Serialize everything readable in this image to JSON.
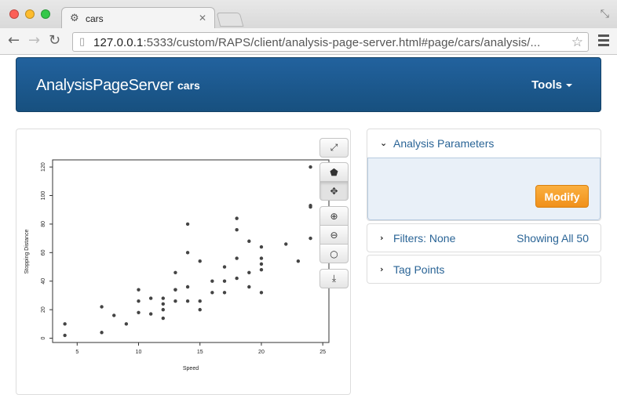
{
  "browser": {
    "tab_title": "cars",
    "tab_favicon": "gear-icon",
    "url_host": "127.0.0.1",
    "url_rest": ":5333/custom/RAPS/client/analysis-page-server.html#page/cars/analysis/..."
  },
  "navbar": {
    "brand": "AnalysisPageServer",
    "subtitle": "cars",
    "tools_label": "Tools"
  },
  "plot_tools": [
    {
      "name": "expand-icon",
      "glyph": "⤢"
    },
    {
      "name": "tag-icon",
      "glyph": "⬟"
    },
    {
      "name": "move-icon",
      "glyph": "✥"
    },
    {
      "name": "zoom-in-icon",
      "glyph": "⊕"
    },
    {
      "name": "zoom-out-icon",
      "glyph": "⊖"
    },
    {
      "name": "circle-icon",
      "glyph": "○"
    },
    {
      "name": "download-icon",
      "glyph": "⤓"
    }
  ],
  "panels": {
    "analysis_parameters": {
      "title": "Analysis Parameters",
      "modify_label": "Modify"
    },
    "filters": {
      "title": "Filters: None",
      "status": "Showing All 50"
    },
    "tag_points": {
      "title": "Tag Points"
    }
  },
  "colors": {
    "navbar": "#1c5a90",
    "accent_link": "#2a6496",
    "modify": "#f4a226"
  },
  "chart_data": {
    "type": "scatter",
    "xlabel": "Speed",
    "ylabel": "Stopping Distance",
    "xlim": [
      3,
      25.5
    ],
    "ylim": [
      -3,
      125
    ],
    "xticks": [
      5,
      10,
      15,
      20,
      25
    ],
    "yticks": [
      0,
      20,
      40,
      60,
      80,
      100,
      120
    ],
    "x": [
      4,
      4,
      7,
      7,
      8,
      9,
      10,
      10,
      10,
      11,
      11,
      12,
      12,
      12,
      12,
      13,
      13,
      13,
      13,
      14,
      14,
      14,
      14,
      15,
      15,
      15,
      16,
      16,
      17,
      17,
      17,
      18,
      18,
      18,
      18,
      19,
      19,
      19,
      20,
      20,
      20,
      20,
      20,
      22,
      23,
      24,
      24,
      24,
      24,
      25
    ],
    "y": [
      2,
      10,
      4,
      22,
      16,
      10,
      18,
      26,
      34,
      17,
      28,
      14,
      20,
      24,
      28,
      26,
      34,
      34,
      46,
      26,
      36,
      60,
      80,
      20,
      26,
      54,
      32,
      40,
      32,
      40,
      50,
      42,
      56,
      76,
      84,
      36,
      46,
      68,
      32,
      48,
      52,
      56,
      64,
      66,
      54,
      70,
      92,
      93,
      120,
      85
    ]
  }
}
